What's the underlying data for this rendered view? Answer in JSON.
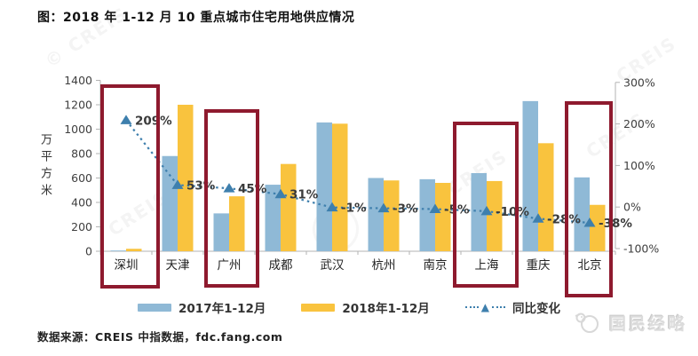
{
  "title": "图：2018 年 1-12 月 10 重点城市住宅用地供应情况",
  "y_axis_label": "万平方米",
  "source": "数据来源：CREIS 中指数据，fdc.fang.com",
  "legend": [
    "2017年1-12月",
    "2018年1-12月",
    "同比变化"
  ],
  "watermarks": {
    "brand": "国民经略",
    "stamp": "CREIS",
    "corner": "© CREIS"
  },
  "colors": {
    "bar_2017": "#8fb9d6",
    "bar_2018": "#f9c33e",
    "yoy_line": "#3e7fad",
    "highlight_box": "#8e1a2e",
    "axis": "#b3b3b3"
  },
  "chart_data": {
    "type": "bar",
    "title": "2018年1-12月10重点城市住宅用地供应情况",
    "categories": [
      "深圳",
      "天津",
      "广州",
      "成都",
      "武汉",
      "杭州",
      "南京",
      "上海",
      "重庆",
      "北京"
    ],
    "series": [
      {
        "name": "2017年1-12月",
        "type": "bar",
        "axis": "left",
        "color": "#8fb9d6",
        "values": [
          6,
          780,
          310,
          545,
          1055,
          600,
          590,
          640,
          1230,
          605
        ]
      },
      {
        "name": "2018年1-12月",
        "type": "bar",
        "axis": "left",
        "color": "#f9c33e",
        "values": [
          20,
          1200,
          450,
          715,
          1045,
          580,
          560,
          575,
          885,
          380
        ]
      },
      {
        "name": "同比变化",
        "type": "line",
        "axis": "right",
        "color": "#3e7fad",
        "style": "dotted-triangle",
        "values": [
          209,
          53,
          45,
          31,
          -1,
          -3,
          -5,
          -10,
          -28,
          -38
        ],
        "labels": [
          "209%",
          "53%",
          "45%",
          "31%",
          "-1%",
          "-3%",
          "-5%",
          "-10%",
          "-28%",
          "-38%"
        ]
      }
    ],
    "left_axis": {
      "label": "万平方米",
      "min": 0,
      "max": 1400,
      "step": 200,
      "ticks": [
        "0",
        "200",
        "400",
        "600",
        "800",
        "1000",
        "1200",
        "1400"
      ]
    },
    "right_axis": {
      "min": -100,
      "max": 300,
      "step": 100,
      "ticks": [
        "300%",
        "200%",
        "100%",
        "0%",
        "-100%"
      ]
    },
    "grid": false,
    "legend_position": "bottom",
    "highlights": [
      "深圳",
      "广州",
      "上海",
      "北京"
    ]
  }
}
